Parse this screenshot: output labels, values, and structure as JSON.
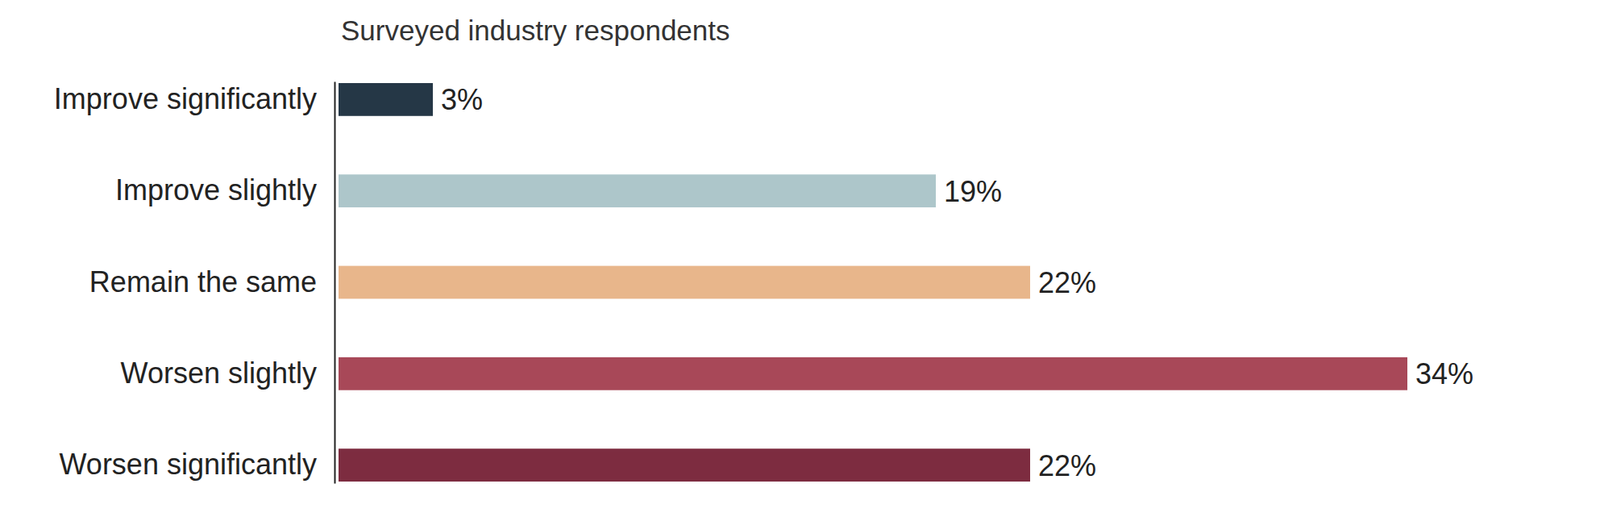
{
  "chart_data": {
    "type": "bar",
    "orientation": "horizontal",
    "title": "Surveyed industry respondents",
    "categories": [
      "Improve significantly",
      "Improve slightly",
      "Remain the same",
      "Worsen slightly",
      "Worsen significantly"
    ],
    "values": [
      3,
      19,
      22,
      34,
      22
    ],
    "value_labels": [
      "3%",
      "19%",
      "22%",
      "34%",
      "22%"
    ],
    "colors": [
      "#253746",
      "#adc6ca",
      "#e8b68b",
      "#a84858",
      "#7d2c40"
    ],
    "data_labels": true,
    "tick_labels": "y"
  }
}
